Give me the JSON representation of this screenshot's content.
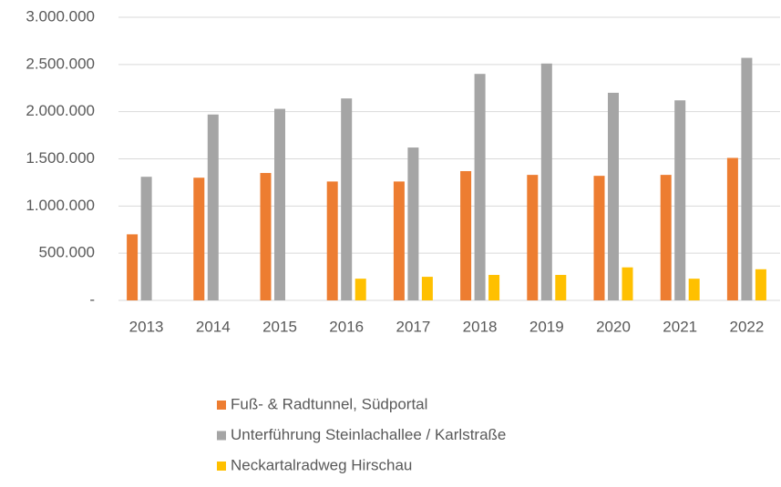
{
  "chart_data": {
    "type": "bar",
    "categories": [
      "2013",
      "2014",
      "2015",
      "2016",
      "2017",
      "2018",
      "2019",
      "2020",
      "2021",
      "2022"
    ],
    "series": [
      {
        "name": "Fuß- & Radtunnel, Südportal",
        "color": "#ed7d31",
        "values": [
          700000,
          1300000,
          1350000,
          1260000,
          1260000,
          1370000,
          1330000,
          1320000,
          1330000,
          1510000
        ]
      },
      {
        "name": "Unterführung Steinlachallee / Karlstraße",
        "color": "#a5a5a5",
        "values": [
          1310000,
          1970000,
          2030000,
          2140000,
          1620000,
          2400000,
          2510000,
          2200000,
          2120000,
          2570000
        ]
      },
      {
        "name": "Neckartalradweg Hirschau",
        "color": "#ffc000",
        "values": [
          null,
          null,
          null,
          230000,
          250000,
          270000,
          270000,
          350000,
          230000,
          330000
        ]
      }
    ],
    "ylim": [
      0,
      3000000
    ],
    "yticks": [
      {
        "value": 0,
        "label": "-"
      },
      {
        "value": 500000,
        "label": "500.000"
      },
      {
        "value": 1000000,
        "label": "1.000.000"
      },
      {
        "value": 1500000,
        "label": "1.500.000"
      },
      {
        "value": 2000000,
        "label": "2.000.000"
      },
      {
        "value": 2500000,
        "label": "2.500.000"
      },
      {
        "value": 3000000,
        "label": "3.000.000"
      }
    ],
    "grid": true,
    "legend": "bottom"
  }
}
